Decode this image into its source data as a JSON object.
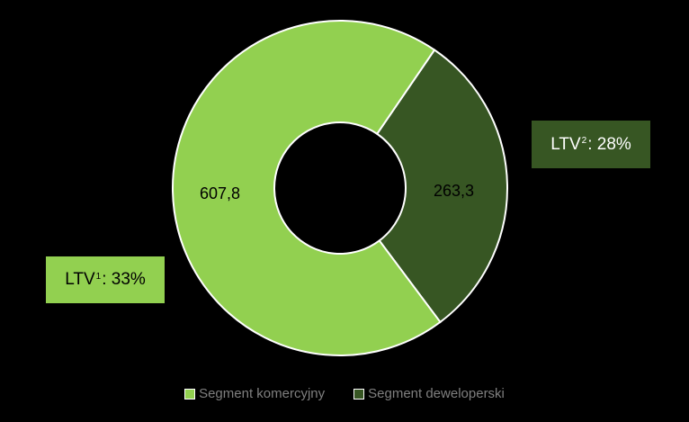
{
  "chart_data": {
    "type": "pie",
    "categories": [
      "Segment komercyjny",
      "Segment deweloperski"
    ],
    "values": [
      607.8,
      263.3
    ],
    "value_labels": [
      "607,8",
      "263,3"
    ],
    "colors": [
      "#92d050",
      "#375623"
    ],
    "donut": true,
    "legend_position": "bottom",
    "annotations": [
      {
        "prefix": "LTV ",
        "sup": "1",
        "suffix": ": 33%"
      },
      {
        "prefix": "LTV ",
        "sup": "2",
        "suffix": ": 28%"
      }
    ]
  }
}
